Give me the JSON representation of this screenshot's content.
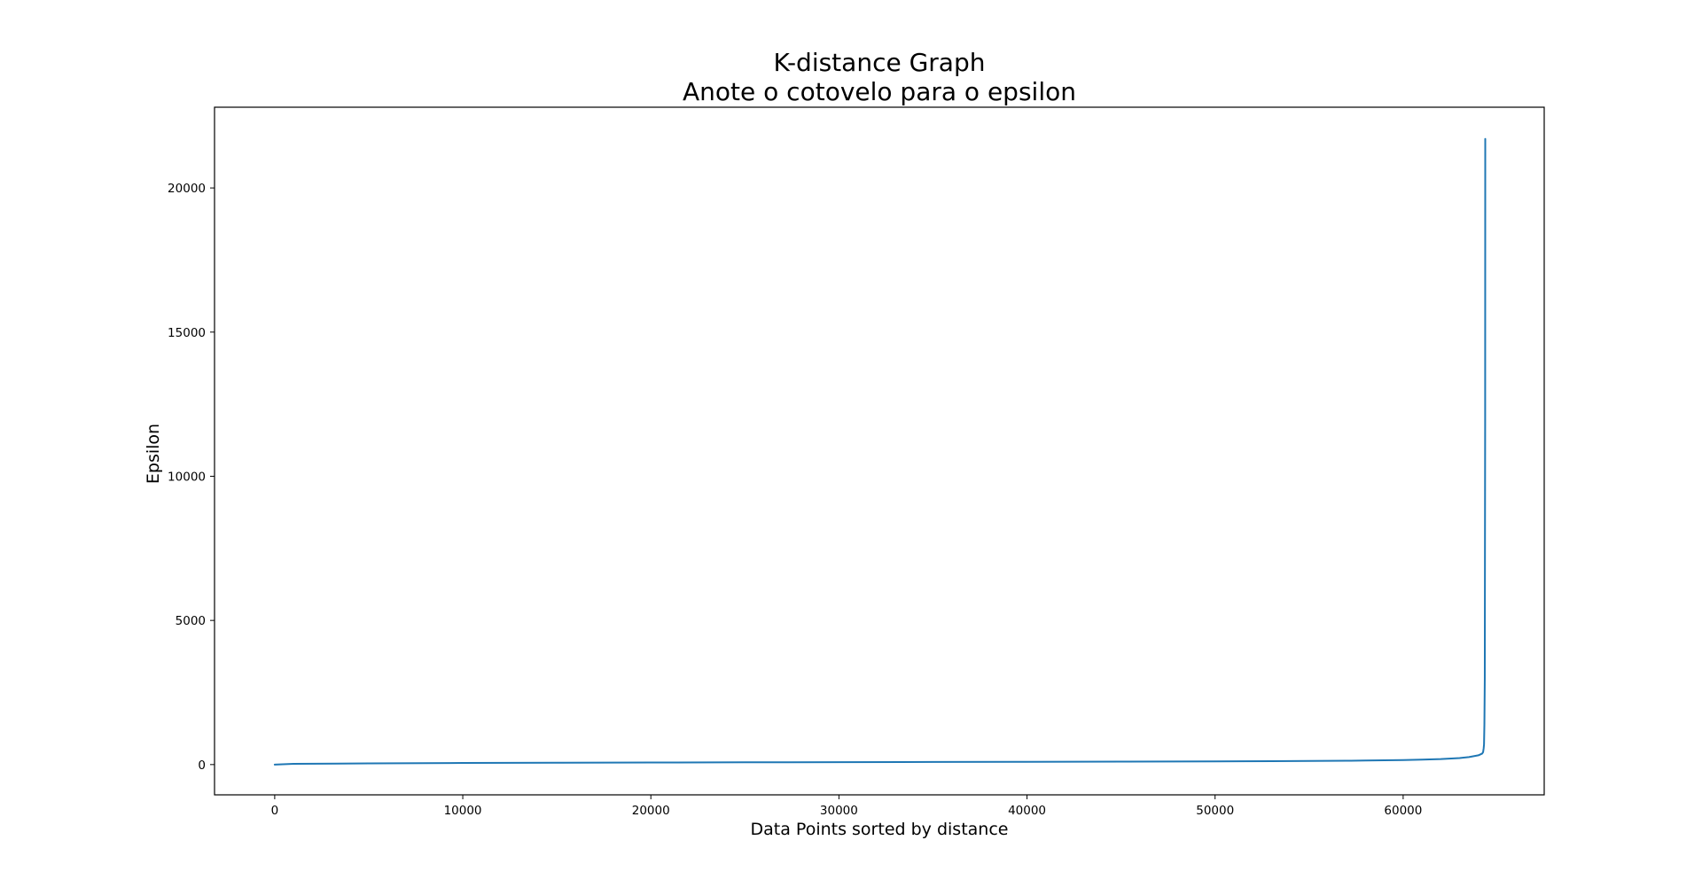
{
  "chart_data": {
    "type": "line",
    "title": "K-distance Graph",
    "subtitle": "Anote o cotovelo para o epsilon",
    "xlabel": "Data Points sorted by distance",
    "ylabel": "Epsilon",
    "xlim": [
      -3200,
      67500
    ],
    "ylim": [
      -1050,
      22800
    ],
    "x_ticks": [
      0,
      10000,
      20000,
      30000,
      40000,
      50000,
      60000
    ],
    "x_tick_labels": [
      "0",
      "10000",
      "20000",
      "30000",
      "40000",
      "50000",
      "60000"
    ],
    "y_ticks": [
      0,
      5000,
      10000,
      15000,
      20000
    ],
    "y_tick_labels": [
      "0",
      "5000",
      "10000",
      "15000",
      "20000"
    ],
    "grid": false,
    "legend": "none",
    "series": [
      {
        "color": "#1f77b4",
        "x": [
          0,
          1000,
          5000,
          10000,
          15000,
          20000,
          25000,
          30000,
          35000,
          40000,
          45000,
          50000,
          53000,
          55000,
          57000,
          58000,
          59000,
          60000,
          61000,
          62000,
          63000,
          63500,
          64000,
          64200,
          64250,
          64280,
          64300,
          64320,
          64340,
          64360,
          64365
        ],
        "y": [
          0,
          25,
          40,
          55,
          65,
          72,
          78,
          84,
          90,
          96,
          103,
          110,
          118,
          125,
          133,
          140,
          148,
          158,
          170,
          190,
          225,
          260,
          320,
          380,
          430,
          560,
          700,
          1400,
          3000,
          12000,
          21700
        ]
      }
    ]
  }
}
